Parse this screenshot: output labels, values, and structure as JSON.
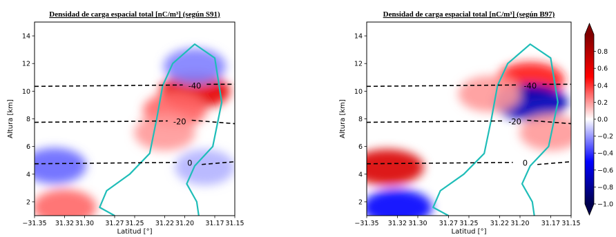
{
  "chart_data": [
    {
      "type": "heatmap",
      "title": "Densidad de carga espacial total [nC/m³] (según S91)",
      "xlabel": "Latitud [°]",
      "ylabel": "Altura [km]",
      "xlim": [
        -31.35,
        -31.15
      ],
      "ylim": [
        1,
        15
      ],
      "xticks": [
        -31.35,
        -31.32,
        -31.3,
        -31.27,
        -31.25,
        -31.22,
        -31.2,
        -31.17,
        -31.15
      ],
      "xtick_labels": [
        "−31.35",
        "31.32",
        "31.30",
        "31.27",
        "31.25",
        "31.22",
        "31.20",
        "31.17",
        "31.15"
      ],
      "yticks": [
        2,
        4,
        6,
        8,
        10,
        12,
        14
      ],
      "grid": false,
      "temperature_contours": [
        {
          "label": "0",
          "height_km": 4.8
        },
        {
          "label": "-20",
          "height_km": 7.8
        },
        {
          "label": "-40",
          "height_km": 10.4
        }
      ],
      "features": [
        {
          "lat": -31.19,
          "alt": 10.0,
          "value": 0.6
        },
        {
          "lat": -31.21,
          "alt": 8.6,
          "value": 0.3
        },
        {
          "lat": -31.33,
          "alt": 4.6,
          "value": -0.3
        },
        {
          "lat": -31.32,
          "alt": 1.6,
          "value": 0.3
        },
        {
          "lat": -31.19,
          "alt": 11.8,
          "value": -0.25
        },
        {
          "lat": -31.22,
          "alt": 7.0,
          "value": 0.2
        },
        {
          "lat": -31.18,
          "alt": 4.5,
          "value": -0.15
        }
      ]
    },
    {
      "type": "heatmap",
      "title": "Densidad de carga espacial total [nC/m³] (según B97)",
      "xlabel": "Latitud [°]",
      "ylabel": "Altura [km]",
      "xlim": [
        -31.35,
        -31.15
      ],
      "ylim": [
        1,
        15
      ],
      "xticks": [
        -31.35,
        -31.32,
        -31.3,
        -31.27,
        -31.25,
        -31.22,
        -31.2,
        -31.17,
        -31.15
      ],
      "xtick_labels": [
        "−31.35",
        "31.32",
        "31.30",
        "31.27",
        "31.25",
        "31.22",
        "31.20",
        "31.17",
        "31.15"
      ],
      "yticks": [
        2,
        4,
        6,
        8,
        10,
        12,
        14
      ],
      "grid": false,
      "temperature_contours": [
        {
          "label": "0",
          "height_km": 4.8
        },
        {
          "label": "-20",
          "height_km": 7.8
        },
        {
          "label": "-40",
          "height_km": 10.4
        }
      ],
      "features": [
        {
          "lat": -31.19,
          "alt": 10.8,
          "value": 0.45
        },
        {
          "lat": -31.19,
          "alt": 9.2,
          "value": -0.7
        },
        {
          "lat": -31.33,
          "alt": 4.5,
          "value": 0.65
        },
        {
          "lat": -31.32,
          "alt": 1.6,
          "value": -0.5
        },
        {
          "lat": -31.23,
          "alt": 9.8,
          "value": 0.2
        },
        {
          "lat": -31.17,
          "alt": 7.0,
          "value": 0.2
        }
      ]
    }
  ],
  "colorbar": {
    "cmap": "seismic",
    "min": -1.0,
    "max": 1.0,
    "ticks": [
      0.8,
      0.6,
      0.4,
      0.2,
      0.0,
      -0.2,
      -0.4,
      -0.6,
      -0.8,
      -1.0
    ],
    "tick_labels": [
      "0.8",
      "0.6",
      "0.4",
      "0.2",
      "0.0",
      "−0.2",
      "−0.4",
      "−0.6",
      "−0.8",
      "−1.0"
    ]
  },
  "colors": {
    "cloud_outline": "#1fbdb8",
    "isotherm": "#000000"
  }
}
